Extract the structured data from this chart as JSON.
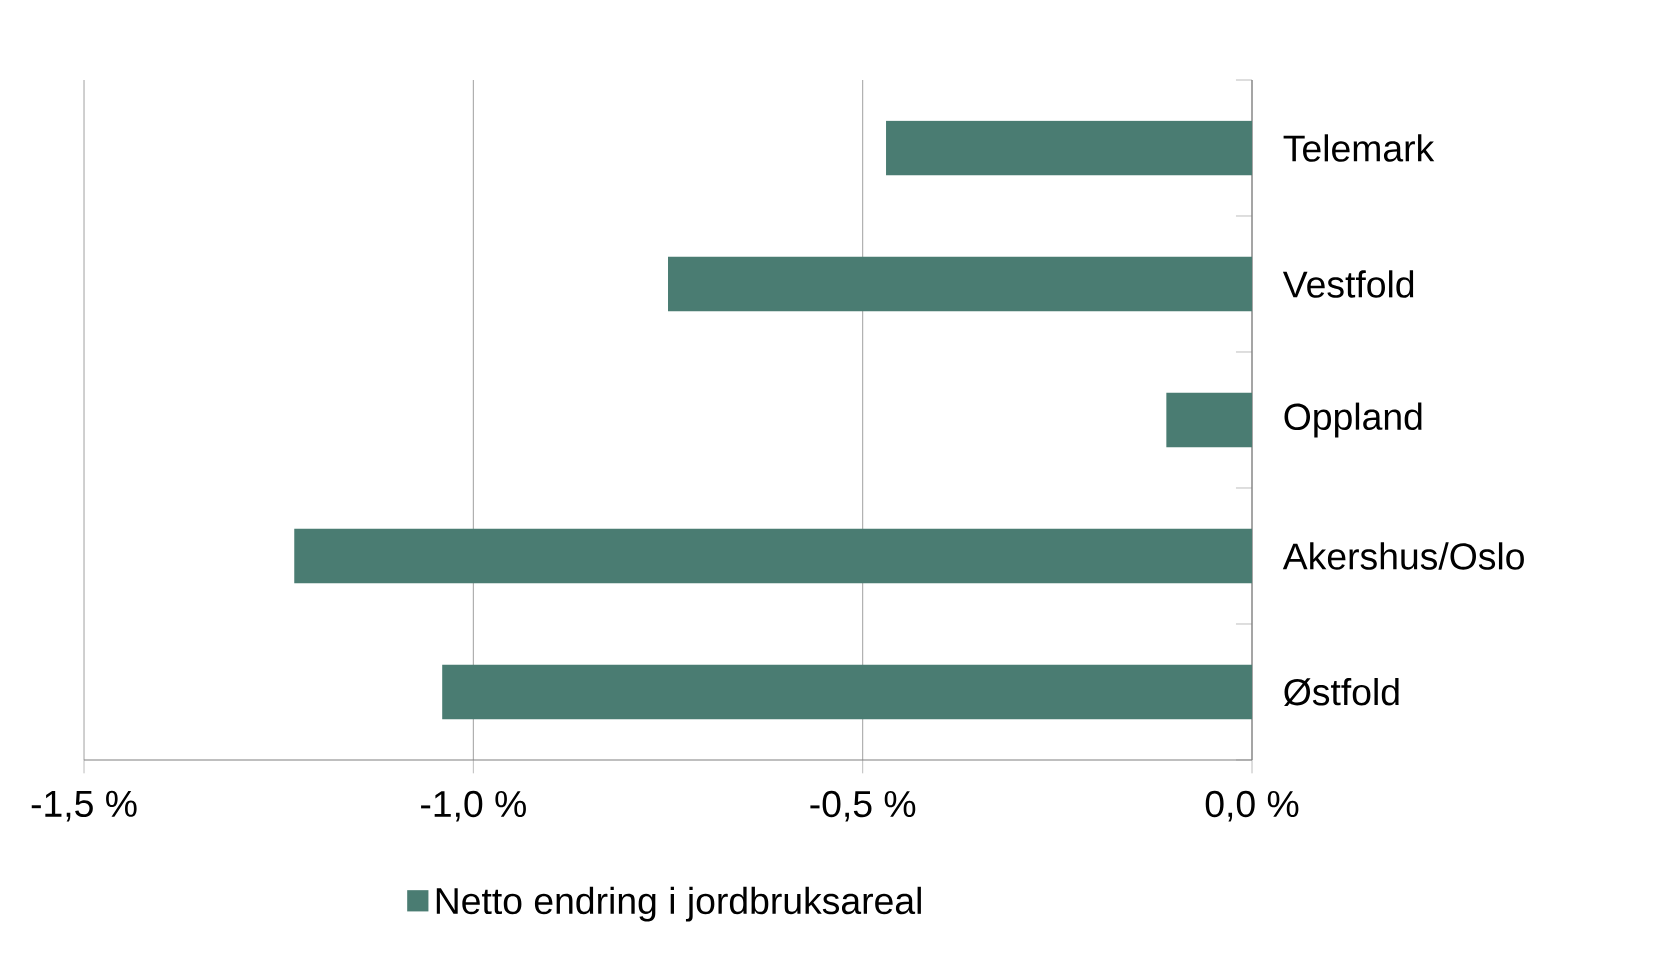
{
  "chart_data": {
    "type": "bar",
    "orientation": "horizontal",
    "categories": [
      "Telemark",
      "Vestfold",
      "Oppland",
      "Akershus/Oslo",
      "Østfold"
    ],
    "series": [
      {
        "name": "Netto endring i jordbruksareal",
        "color": "#4a7c72",
        "values": [
          -0.47,
          -0.75,
          -0.11,
          -1.23,
          -1.04
        ]
      }
    ],
    "xlim": [
      -1.5,
      0
    ],
    "xticks": [
      {
        "value": -1.5,
        "label": "-1,5 %"
      },
      {
        "value": -1.0,
        "label": "-1,0 %"
      },
      {
        "value": -0.5,
        "label": "-0,5 %"
      },
      {
        "value": 0,
        "label": "0,0 %"
      }
    ],
    "grid": "x",
    "legend": "bottom"
  }
}
